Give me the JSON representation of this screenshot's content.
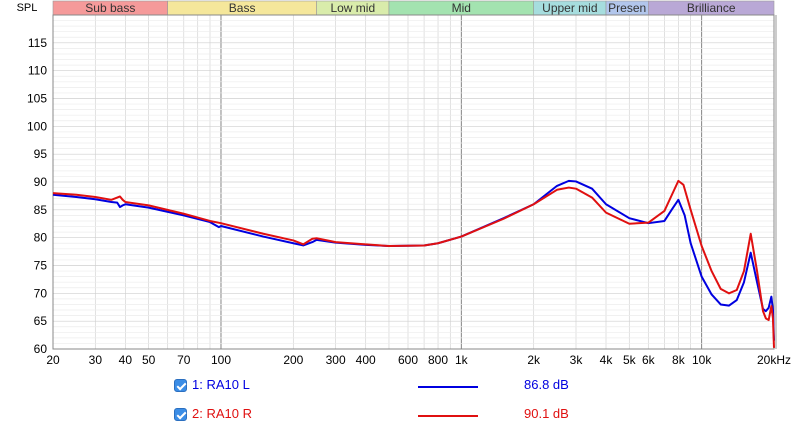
{
  "chart_data": {
    "type": "line",
    "ylabel": "SPL",
    "xlim": [
      20,
      20000
    ],
    "ylim": [
      60,
      120
    ],
    "x_scale": "log",
    "grid": true,
    "x_ticks": [
      {
        "value": 20,
        "label": "20"
      },
      {
        "value": 30,
        "label": "30"
      },
      {
        "value": 40,
        "label": "40"
      },
      {
        "value": 50,
        "label": "50"
      },
      {
        "value": 70,
        "label": "70"
      },
      {
        "value": 100,
        "label": "100"
      },
      {
        "value": 200,
        "label": "200"
      },
      {
        "value": 300,
        "label": "300"
      },
      {
        "value": 400,
        "label": "400"
      },
      {
        "value": 600,
        "label": "600"
      },
      {
        "value": 800,
        "label": "800"
      },
      {
        "value": 1000,
        "label": "1k"
      },
      {
        "value": 2000,
        "label": "2k"
      },
      {
        "value": 3000,
        "label": "3k"
      },
      {
        "value": 4000,
        "label": "4k"
      },
      {
        "value": 5000,
        "label": "5k"
      },
      {
        "value": 6000,
        "label": "6k"
      },
      {
        "value": 8000,
        "label": "8k"
      },
      {
        "value": 10000,
        "label": "10k"
      },
      {
        "value": 20000,
        "label": "20kHz"
      }
    ],
    "y_ticks": [
      60,
      65,
      70,
      75,
      80,
      85,
      90,
      95,
      100,
      105,
      110,
      115
    ],
    "bands": [
      {
        "name": "Sub bass",
        "from": 20,
        "to": 60,
        "color": "#f59a9a"
      },
      {
        "name": "Bass",
        "from": 60,
        "to": 250,
        "color": "#f5e79b"
      },
      {
        "name": "Low mid",
        "from": 250,
        "to": 500,
        "color": "#d9ecab"
      },
      {
        "name": "Mid",
        "from": 500,
        "to": 2000,
        "color": "#a3e3b0"
      },
      {
        "name": "Upper mid",
        "from": 2000,
        "to": 4000,
        "color": "#a6ddde"
      },
      {
        "name": "Presen",
        "from": 4000,
        "to": 6000,
        "color": "#b2c6ec"
      },
      {
        "name": "Brilliance",
        "from": 6000,
        "to": 20000,
        "color": "#b9a8d6"
      }
    ],
    "series": [
      {
        "name": "1: RA10 L",
        "color": "#0000e0",
        "value_label": "86.8 dB",
        "points": [
          [
            20,
            87.7
          ],
          [
            25,
            87.3
          ],
          [
            30,
            86.9
          ],
          [
            35,
            86.4
          ],
          [
            37,
            86.3
          ],
          [
            38,
            85.5
          ],
          [
            39,
            85.8
          ],
          [
            40,
            86.0
          ],
          [
            50,
            85.4
          ],
          [
            70,
            84.0
          ],
          [
            90,
            82.8
          ],
          [
            98,
            81.9
          ],
          [
            100,
            82.1
          ],
          [
            150,
            80.2
          ],
          [
            200,
            79.0
          ],
          [
            220,
            78.6
          ],
          [
            240,
            79.2
          ],
          [
            250,
            79.6
          ],
          [
            300,
            79.1
          ],
          [
            400,
            78.7
          ],
          [
            500,
            78.5
          ],
          [
            700,
            78.6
          ],
          [
            800,
            79.0
          ],
          [
            1000,
            80.2
          ],
          [
            1500,
            83.5
          ],
          [
            2000,
            86.0
          ],
          [
            2500,
            89.3
          ],
          [
            2800,
            90.2
          ],
          [
            3000,
            90.1
          ],
          [
            3500,
            88.8
          ],
          [
            4000,
            86.0
          ],
          [
            5000,
            83.5
          ],
          [
            6000,
            82.6
          ],
          [
            7000,
            83.0
          ],
          [
            7500,
            85.0
          ],
          [
            8000,
            86.8
          ],
          [
            8500,
            84.0
          ],
          [
            9000,
            79.0
          ],
          [
            10000,
            73.0
          ],
          [
            11000,
            69.8
          ],
          [
            12000,
            68.0
          ],
          [
            13000,
            67.8
          ],
          [
            14000,
            68.8
          ],
          [
            15000,
            72.0
          ],
          [
            16000,
            77.3
          ],
          [
            17000,
            72.0
          ],
          [
            18000,
            67.2
          ],
          [
            18500,
            66.8
          ],
          [
            19000,
            67.4
          ],
          [
            19500,
            69.4
          ],
          [
            19800,
            67.0
          ],
          [
            20000,
            61.5
          ]
        ]
      },
      {
        "name": "2: RA10 R",
        "color": "#e01010",
        "value_label": "90.1 dB",
        "points": [
          [
            20,
            88.0
          ],
          [
            25,
            87.7
          ],
          [
            30,
            87.3
          ],
          [
            35,
            86.8
          ],
          [
            37,
            87.2
          ],
          [
            38,
            87.4
          ],
          [
            39,
            86.8
          ],
          [
            40,
            86.4
          ],
          [
            50,
            85.8
          ],
          [
            70,
            84.3
          ],
          [
            90,
            83.0
          ],
          [
            100,
            82.6
          ],
          [
            150,
            80.7
          ],
          [
            200,
            79.5
          ],
          [
            220,
            78.8
          ],
          [
            240,
            79.8
          ],
          [
            250,
            79.9
          ],
          [
            300,
            79.2
          ],
          [
            400,
            78.8
          ],
          [
            500,
            78.5
          ],
          [
            700,
            78.6
          ],
          [
            800,
            79.0
          ],
          [
            1000,
            80.2
          ],
          [
            1500,
            83.4
          ],
          [
            2000,
            86.0
          ],
          [
            2500,
            88.6
          ],
          [
            2800,
            89.0
          ],
          [
            3000,
            88.8
          ],
          [
            3500,
            87.2
          ],
          [
            4000,
            84.5
          ],
          [
            5000,
            82.5
          ],
          [
            6000,
            82.7
          ],
          [
            7000,
            84.8
          ],
          [
            7500,
            87.6
          ],
          [
            8000,
            90.2
          ],
          [
            8400,
            89.5
          ],
          [
            9000,
            85.0
          ],
          [
            10000,
            78.5
          ],
          [
            11000,
            74.0
          ],
          [
            12000,
            70.8
          ],
          [
            13000,
            70.0
          ],
          [
            14000,
            70.6
          ],
          [
            15000,
            74.0
          ],
          [
            16000,
            80.7
          ],
          [
            17000,
            74.0
          ],
          [
            18000,
            66.8
          ],
          [
            18500,
            65.5
          ],
          [
            19000,
            65.2
          ],
          [
            19500,
            67.7
          ],
          [
            19800,
            65.5
          ],
          [
            20000,
            60.2
          ]
        ]
      }
    ]
  },
  "legend": {
    "items": [
      {
        "label": "1: RA10 L",
        "value": "86.8 dB",
        "color": "#0000e0"
      },
      {
        "label": "2: RA10 R",
        "value": "90.1 dB",
        "color": "#e01010"
      }
    ]
  }
}
